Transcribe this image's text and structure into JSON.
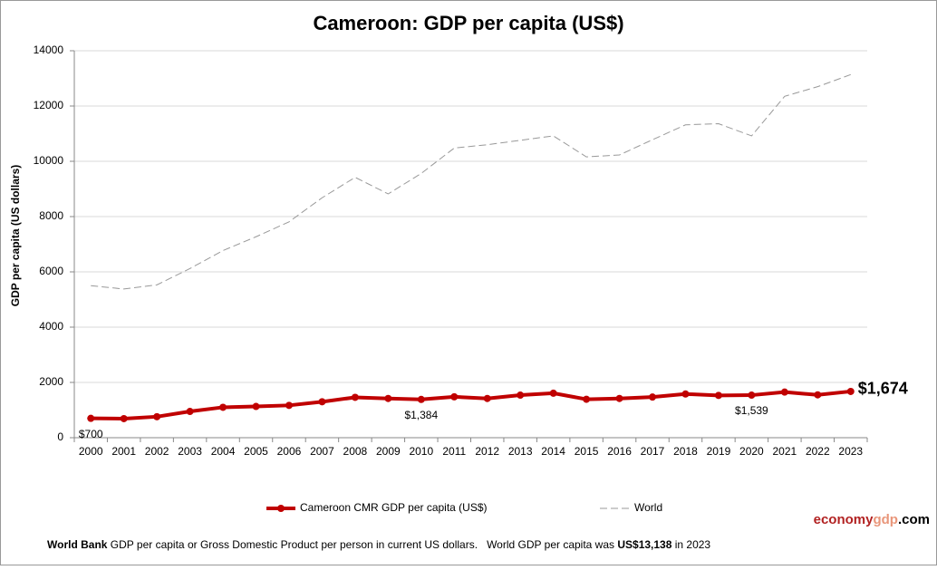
{
  "chart_data": {
    "type": "line",
    "title": "Cameroon: GDP per capita (US$)",
    "y_label": "GDP per capita (US dollars)",
    "categories": [
      "2000",
      "2001",
      "2002",
      "2003",
      "2004",
      "2005",
      "2006",
      "2007",
      "2008",
      "2009",
      "2010",
      "2011",
      "2012",
      "2013",
      "2014",
      "2015",
      "2016",
      "2017",
      "2018",
      "2019",
      "2020",
      "2021",
      "2022",
      "2023"
    ],
    "series": [
      {
        "name": "Cameroon CMR GDP per capita (US$)",
        "color": "#c00000",
        "values": [
          700,
          690,
          760,
          950,
          1100,
          1130,
          1170,
          1300,
          1460,
          1420,
          1384,
          1480,
          1420,
          1540,
          1610,
          1390,
          1420,
          1470,
          1580,
          1530,
          1539,
          1650,
          1550,
          1674
        ],
        "value_labels": [
          "$700",
          null,
          null,
          null,
          null,
          null,
          null,
          null,
          null,
          null,
          "$1,384",
          null,
          null,
          null,
          null,
          null,
          null,
          null,
          null,
          null,
          "$1,539",
          null,
          null,
          "$1,674"
        ]
      },
      {
        "name": "World",
        "color": "#999999",
        "values": [
          5500,
          5380,
          5530,
          6120,
          6770,
          7270,
          7810,
          8680,
          9420,
          8820,
          9560,
          10480,
          10600,
          10760,
          10920,
          10160,
          10230,
          10780,
          11320,
          11360,
          10920,
          12350,
          12700,
          13138
        ]
      }
    ],
    "ylim": [
      0,
      14000
    ],
    "yticks": [
      0,
      2000,
      4000,
      6000,
      8000,
      10000,
      12000,
      14000
    ],
    "grid": true,
    "legend": "bottom",
    "brand": [
      "economy",
      "gdp",
      ".com"
    ],
    "footer": [
      "World Bank",
      " GDP per capita or Gross Domestic Product per person in current US dollars.   World GDP per capita was ",
      "US$13,138",
      " in 2023"
    ]
  }
}
